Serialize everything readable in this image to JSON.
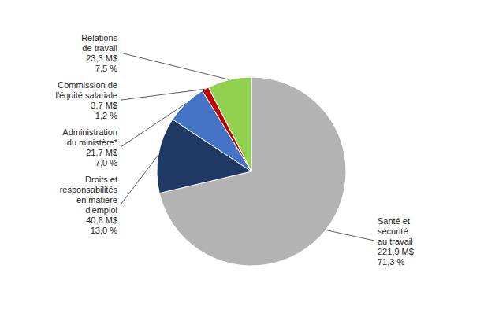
{
  "chart_data": {
    "type": "pie",
    "values": [
      71.3,
      13.0,
      7.0,
      1.2,
      7.5
    ],
    "colors": [
      "#b3b3b3",
      "#1f3864",
      "#4472c4",
      "#c00000",
      "#92d050"
    ],
    "annotations": [
      "Santé et\nsécurité\nau travail\n221,9 M$\n71,3 %",
      "Droits et\nresponsabilités\nen matière\nd'emploi\n40,6 M$\n13,0 %",
      "Administration\ndu ministère*\n21,7 M$\n7,0 %",
      "Commission de\nl'équité salariale\n3,7 M$\n1,2 %",
      "Relations\nde travail\n23,3 M$\n7,5 %"
    ]
  }
}
